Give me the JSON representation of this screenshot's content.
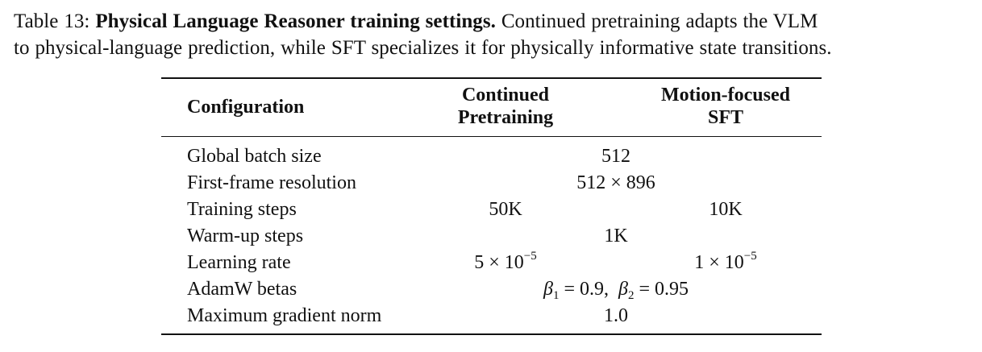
{
  "caption": {
    "label": "Table 13:",
    "bold_title": "Physical Language Reasoner training settings.",
    "text_line1": "Continued pretraining adapts the VLM",
    "text_line2": "to physical-language prediction, while SFT specializes it for physically informative state transitions."
  },
  "table": {
    "headers": {
      "config": "Configuration",
      "col1_line1": "Continued",
      "col1_line2": "Pretraining",
      "col2_line1": "Motion-focused",
      "col2_line2": "SFT"
    },
    "rows": [
      {
        "label": "Global batch size",
        "shared": "512"
      },
      {
        "label": "First-frame resolution",
        "shared_a": "512",
        "shared_op": "×",
        "shared_b": "896"
      },
      {
        "label": "Training steps",
        "col1": "50K",
        "col2": "10K"
      },
      {
        "label": "Warm-up steps",
        "shared": "1K"
      },
      {
        "label": "Learning rate",
        "col1_mant": "5",
        "col1_op": "×",
        "col1_base": "10",
        "col1_exp": "−5",
        "col2_mant": "1",
        "col2_op": "×",
        "col2_base": "10",
        "col2_exp": "−5"
      },
      {
        "label": "AdamW betas",
        "b1_sym": "β",
        "b1_sub": "1",
        "b1_eq": "=",
        "b1_val": "0.9,",
        "b2_sym": "β",
        "b2_sub": "2",
        "b2_eq": "=",
        "b2_val": "0.95"
      },
      {
        "label": "Maximum gradient norm",
        "shared": "1.0"
      }
    ]
  }
}
